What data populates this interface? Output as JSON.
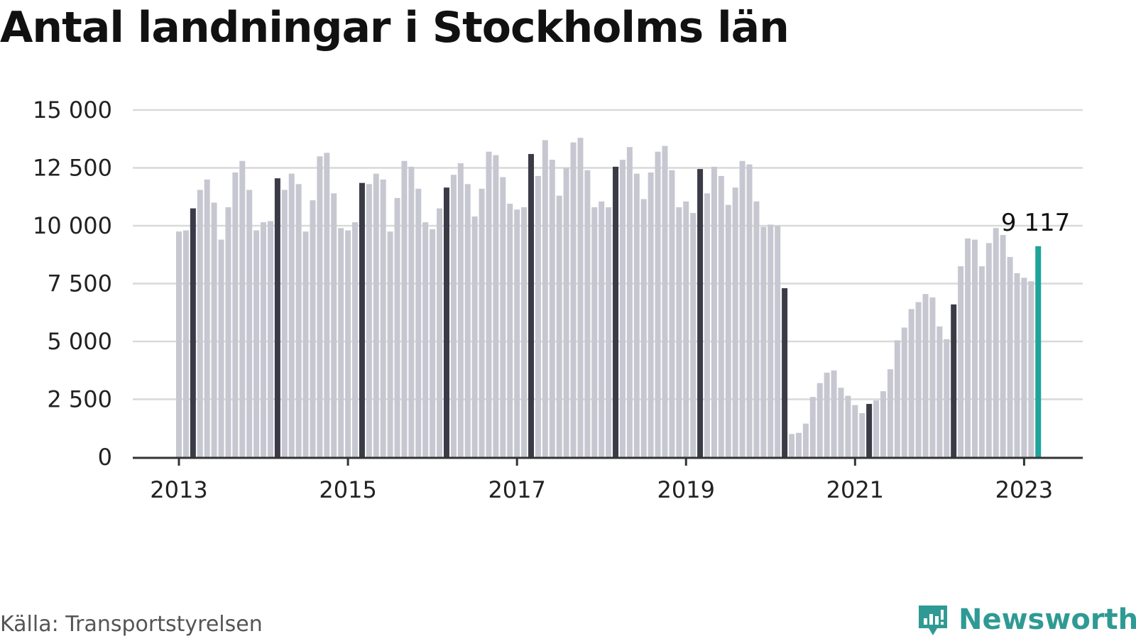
{
  "title": "Antal landningar i Stockholms län",
  "source": "Källa: Transportstyrelsen",
  "brand": {
    "name": "Newsworthy",
    "icon": "newsworthy-chart-bubble-icon"
  },
  "colors": {
    "bar": "#c7c7d1",
    "january": "#3b3b47",
    "latest": "#1fa39b",
    "grid": "#d9d9d9",
    "axis": "#333333",
    "brand": "#2f9a94"
  },
  "chart_data": {
    "type": "bar",
    "title": "Antal landningar i Stockholms län",
    "xlabel": "",
    "ylabel": "",
    "ylim": [
      0,
      15000
    ],
    "yticks": [
      0,
      2500,
      5000,
      7500,
      10000,
      12500,
      15000
    ],
    "ytick_labels": [
      "0",
      "2 500",
      "5 000",
      "7 500",
      "10 000",
      "12 500",
      "15 000"
    ],
    "xticks": [
      "2013",
      "2015",
      "2017",
      "2019",
      "2021",
      "2023"
    ],
    "highlight_label": "9 117",
    "series": [
      {
        "start": "2013-01",
        "values": [
          9750,
          9800,
          10750,
          11550,
          12000,
          11000,
          9400,
          10800,
          12300,
          12800,
          11550,
          9800,
          10150,
          10200,
          12050,
          11550,
          12250,
          11800,
          9750,
          11100,
          13000,
          13150,
          11400,
          9900,
          9800,
          10150,
          11850,
          11800,
          12250,
          12000,
          9750,
          11200,
          12800,
          12550,
          11600,
          10150,
          9850,
          10750,
          11650,
          12200,
          12700,
          11800,
          10400,
          11600,
          13200,
          13050,
          12100,
          10950,
          10700,
          10800,
          13100,
          12150,
          13700,
          12850,
          11300,
          12500,
          13600,
          13800,
          12400,
          10800,
          11050,
          10800,
          12550,
          12850,
          13400,
          12250,
          11150,
          12300,
          13200,
          13450,
          12400,
          10800,
          11050,
          10550,
          12450,
          11400,
          12550,
          12150,
          10900,
          11650,
          12800,
          12650,
          11050,
          9950,
          10050,
          10000,
          7300,
          1000,
          1050,
          1450,
          2600,
          3200,
          3650,
          3750,
          3000,
          2650,
          2250,
          1900,
          2300,
          2450,
          2850,
          3800,
          5050,
          5600,
          6400,
          6700,
          7050,
          6900,
          5650,
          5100,
          6600,
          8250,
          9450,
          9400,
          8250,
          9250,
          9900,
          9600,
          8650,
          7950,
          7750,
          7600,
          9117
        ]
      }
    ]
  }
}
